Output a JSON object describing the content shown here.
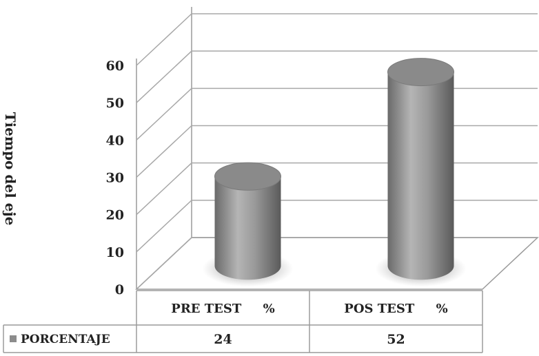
{
  "chart_data": {
    "type": "bar",
    "style": "3d-cylinder",
    "categories": [
      "PRE TEST     %",
      "POS TEST     %"
    ],
    "series": [
      {
        "name": "PORCENTAJE",
        "values": [
          24,
          52
        ],
        "color": "#8c8c8c"
      }
    ],
    "value_labels": [
      "24",
      "52"
    ],
    "ylabel": "Tiempo del eje",
    "ylim": [
      0,
      60
    ],
    "yticks": [
      0,
      10,
      20,
      30,
      40,
      50,
      60
    ],
    "grid": true,
    "legend": "bottom-left table",
    "data_table": true
  }
}
